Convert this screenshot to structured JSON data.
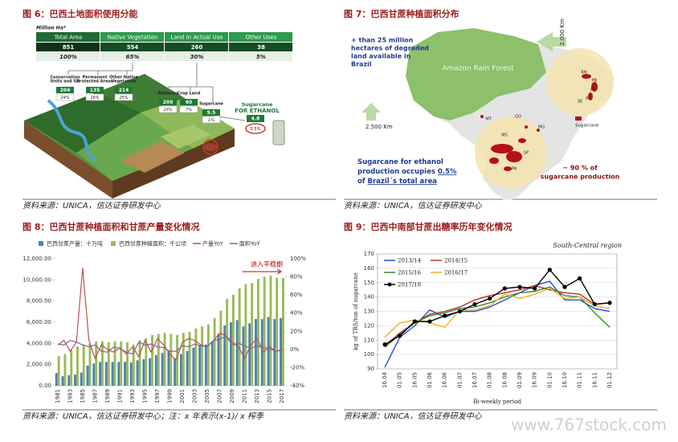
{
  "figures": [
    {
      "caption": "图 6：巴西土地面积使用分能",
      "source": "资料来源：UNICA，信达证券研发中心",
      "table": {
        "unit": "Million Ha*",
        "header": [
          "Total Area",
          "Native Vegetation",
          "Land in Actual Use",
          "Other Uses"
        ],
        "rows": [
          [
            "851",
            "554",
            "260",
            "38"
          ],
          [
            "100%",
            "65%",
            "30%",
            "5%"
          ]
        ]
      },
      "boxes": [
        {
          "label": [
            "Conservation",
            "Units and ILs"
          ],
          "value": "204",
          "share": "24%"
        },
        {
          "label": [
            "Permanent",
            "Protected Areas"
          ],
          "value": "135",
          "share": "16%"
        },
        {
          "label": [
            "Other Native",
            "Vegetation"
          ],
          "value": "214",
          "share": "25%"
        },
        {
          "label": [
            "Pastures"
          ],
          "value": "200",
          "share": "23%"
        },
        {
          "label": [
            "Crop Land"
          ],
          "value": "60",
          "share": "7%"
        },
        {
          "label": [
            "Sugarcane"
          ],
          "value": "9.5",
          "share": "1%"
        }
      ],
      "ethanol": {
        "label": [
          "Sugarcane",
          "FOR ETHANOL"
        ],
        "value": "4.8",
        "share": "0.5%"
      }
    },
    {
      "caption": "图 7：巴西甘蔗种植面积分布",
      "source": "资料来源：UNICA，信达证券研发中心",
      "map": {
        "degraded": [
          "+ than 25 million",
          "hectares of degraded",
          "land available in",
          "Brazil"
        ],
        "forest": "Amazon Rain Forest",
        "dist_north": "2.000 Km",
        "dist_west": "2.500 Km",
        "occupies": [
          [
            "Sugarcane for ethanol"
          ],
          [
            "production occupies ",
            "0.5%"
          ],
          [
            "of ",
            "Brazil´s total area"
          ]
        ],
        "production": [
          "~ 90 % of",
          "sugarcane production"
        ],
        "states": [
          "MT",
          "GO",
          "MG",
          "MS",
          "SP",
          "PR",
          "RN",
          "PB",
          "PE",
          "AL",
          "SE"
        ],
        "legend": "Sugarcane"
      }
    },
    {
      "caption": "图 8：巴西甘蔗种植面积和甘蔗产量变化情况",
      "source": "资料来源：UNICA，信达证券研发中心；注：x 年表示(x-1)/ x 榨季",
      "chart": {
        "type": "bar",
        "annotation": "进入平稳期",
        "categories": [
          "1981",
          null,
          "1983",
          null,
          "1985",
          null,
          "1987",
          null,
          "1989",
          null,
          "1991",
          null,
          "1993",
          null,
          "1995",
          null,
          "1997",
          null,
          "1999",
          null,
          "2001",
          null,
          "2003",
          null,
          "2005",
          null,
          "2007",
          null,
          "2009",
          null,
          "2011",
          null,
          "2013",
          null,
          "2015",
          null,
          "2017"
        ],
        "series": [
          {
            "name": "巴西甘蔗产量：十万吨",
            "type": "bar",
            "color": "#4f81bd",
            "values": [
              1200,
              900,
              1000,
              1050,
              1250,
              1900,
              2100,
              2250,
              2250,
              2250,
              2250,
              2250,
              2200,
              2400,
              2500,
              2600,
              2900,
              3100,
              3300,
              2600,
              3000,
              3300,
              3600,
              3800,
              3900,
              4200,
              4900,
              5700,
              6000,
              6200,
              5600,
              5900,
              6300,
              6300,
              6500,
              6300,
              6400
            ]
          },
          {
            "name": "巴西甘蔗种植面积：千公顷",
            "type": "bar",
            "color": "#9bbb59",
            "values": [
              2800,
              3000,
              3400,
              3700,
              3900,
              4000,
              4200,
              4200,
              4100,
              4200,
              4200,
              4100,
              3900,
              4300,
              4500,
              4800,
              4900,
              5000,
              4900,
              4800,
              5000,
              5100,
              5400,
              5600,
              5800,
              6400,
              7100,
              8200,
              8600,
              9200,
              9600,
              9700,
              10100,
              10300,
              10400,
              10200,
              10200
            ]
          },
          {
            "name": "产量YoY",
            "type": "line",
            "axis": "y2",
            "color": "#c0504d",
            "values": [
              5,
              10,
              -2,
              8,
              90,
              10,
              -10,
              5,
              0,
              -3,
              2,
              -5,
              3,
              -8,
              10,
              -3,
              12,
              5,
              -5,
              -12,
              8,
              12,
              10,
              5,
              3,
              10,
              18,
              15,
              8,
              3,
              -10,
              5,
              12,
              -3,
              3,
              -2,
              -1
            ]
          },
          {
            "name": "面积YoY",
            "type": "line",
            "axis": "y2",
            "color": "#8064a2",
            "values": [
              6,
              5,
              10,
              8,
              5,
              3,
              5,
              -2,
              -3,
              3,
              1,
              -3,
              -5,
              8,
              5,
              6,
              3,
              2,
              -2,
              -2,
              4,
              3,
              6,
              4,
              3,
              10,
              11,
              15,
              5,
              7,
              4,
              1,
              4,
              2,
              1,
              -2,
              0
            ]
          }
        ],
        "ylim": [
          0,
          12000
        ],
        "yticks": [
          {
            "value": 0,
            "label": "0.00"
          },
          {
            "value": 2000,
            "label": "2,000.00"
          },
          {
            "value": 4000,
            "label": "4,000.00"
          },
          {
            "value": 6000,
            "label": "6,000.00"
          },
          {
            "value": 8000,
            "label": "8,000.00"
          },
          {
            "value": 10000,
            "label": "10,000.00"
          },
          {
            "value": 12000,
            "label": "12,000.00"
          }
        ],
        "y2lim": [
          -40,
          100
        ],
        "y2ticks": [
          {
            "value": -40,
            "label": "-40%"
          },
          {
            "value": -20,
            "label": "-20%"
          },
          {
            "value": 0,
            "label": "0%"
          },
          {
            "value": 20,
            "label": "20%"
          },
          {
            "value": 40,
            "label": "40%"
          },
          {
            "value": 60,
            "label": "60%"
          },
          {
            "value": 80,
            "label": "80%"
          },
          {
            "value": 100,
            "label": "100%"
          }
        ],
        "grid": false
      }
    },
    {
      "caption": "图 9：巴西中南部甘蔗出糖率历年变化情况",
      "source": "资料来源：UNICA，信达证券研发中心",
      "chart": {
        "type": "line",
        "title": "South-Central region",
        "xlabel": "Bi-weekly period",
        "ylabel": "kg of TRS/ton of sugarcane",
        "categories": [
          "16.04",
          "01.05",
          "16.05",
          "01.06",
          "16.06",
          "01.07",
          "16.07",
          "01.08",
          "16.08",
          "01.09",
          "16.09",
          "01.10",
          "16.10",
          "01.11",
          "16.11",
          "01.12"
        ],
        "series": [
          {
            "name": "2013/14",
            "color": "#1f4fd8",
            "values": [
              91,
              112,
              120,
              131,
              126,
              130,
              130,
              133,
              138,
              143,
              148,
              151,
              138,
              138,
              132,
              130
            ]
          },
          {
            "name": "2014/15",
            "color": "#c0302a",
            "values": [
              106,
              115,
              122,
              128,
              130,
              133,
              138,
              141,
              143,
              145,
              148,
              145,
              143,
              142,
              135,
              136
            ]
          },
          {
            "name": "2015/16",
            "color": "#3a8a2a",
            "values": [
              105,
              114,
              122,
              127,
              129,
              132,
              133,
              136,
              140,
              143,
              144,
              147,
              141,
              140,
              129,
              119
            ]
          },
          {
            "name": "2016/17",
            "color": "#f0b020",
            "values": [
              112,
              122,
              124,
              122,
              119,
              131,
              131,
              134,
              142,
              139,
              142,
              146,
              139,
              140,
              134,
              132
            ]
          },
          {
            "name": "2017/18",
            "color": "#000000",
            "marker": "circle",
            "values": [
              107,
              113,
              123,
              123,
              127,
              130,
              135,
              139,
              146,
              147,
              146,
              159,
              147,
              153,
              135,
              136
            ]
          }
        ],
        "ylim": [
          90,
          170
        ],
        "yticks": [
          90,
          100,
          110,
          120,
          130,
          140,
          150,
          160,
          170
        ],
        "grid": true
      }
    }
  ],
  "watermark": "www.767stock.com"
}
